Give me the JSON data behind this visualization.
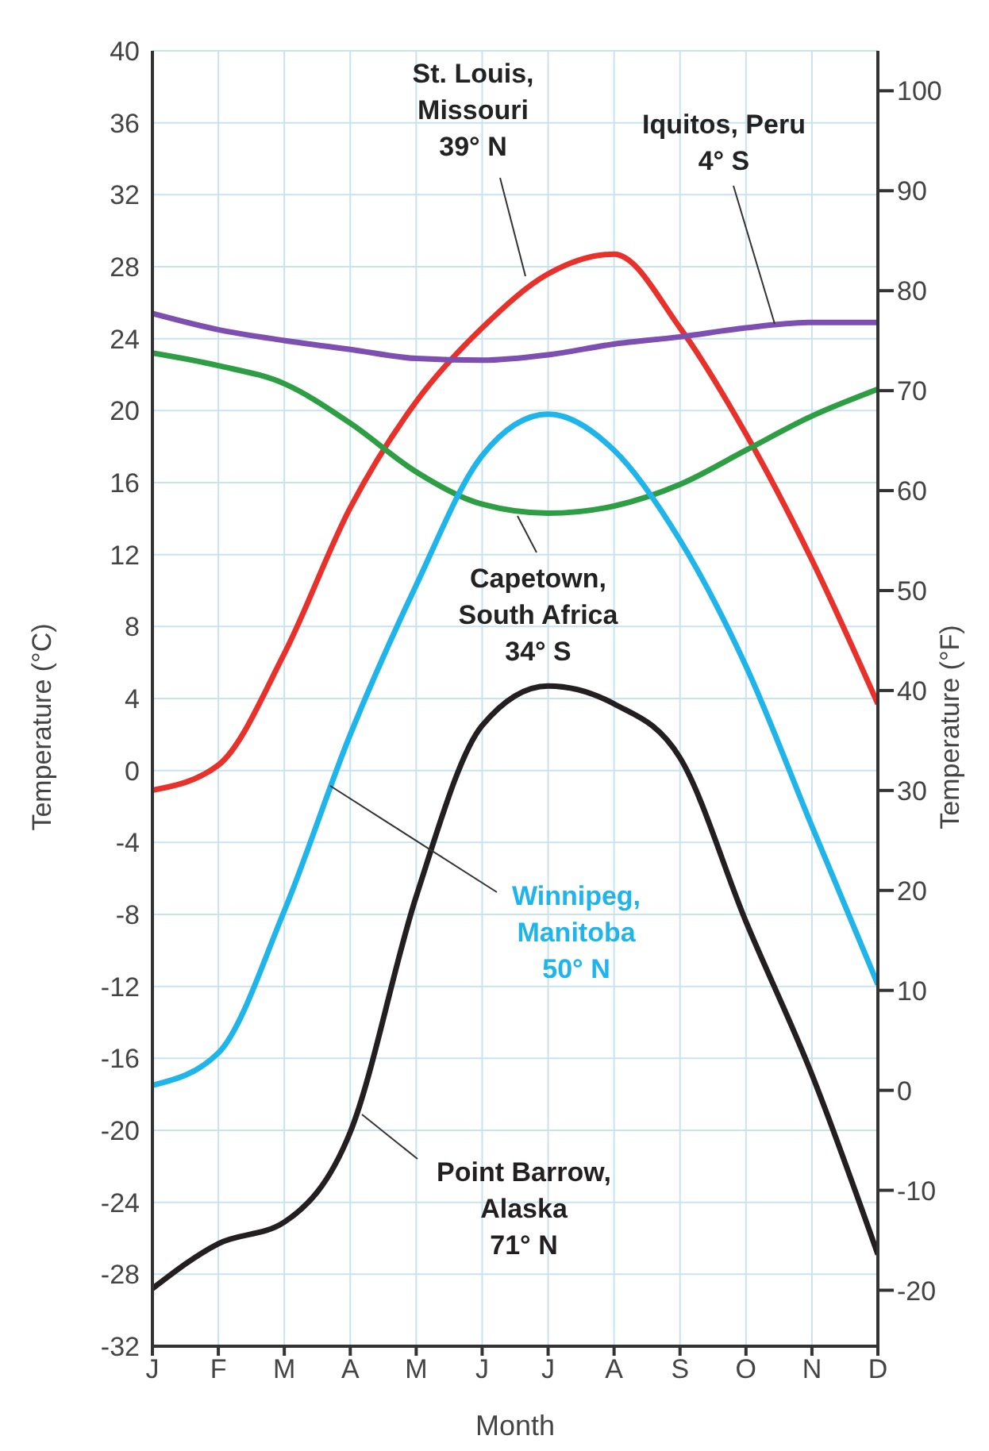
{
  "chart_data": {
    "type": "line",
    "xlabel": "Month",
    "ylabel": "Temperature (°C)",
    "y2label": "Temperature (°F)",
    "categories": [
      "J",
      "F",
      "M",
      "A",
      "M",
      "J",
      "J",
      "A",
      "S",
      "O",
      "N",
      "D"
    ],
    "series": [
      {
        "name": "St. Louis,\nMissouri\n39° N",
        "color": "#e8312a",
        "values": [
          -1.1,
          0.3,
          6.5,
          14.6,
          20.5,
          24.6,
          27.6,
          28.7,
          24.6,
          18.7,
          11.7,
          3.7
        ]
      },
      {
        "name": "Iquitos, Peru\n4° S",
        "color": "#7d4fb0",
        "values": [
          25.4,
          24.5,
          23.9,
          23.4,
          22.9,
          22.8,
          23.1,
          23.7,
          24.1,
          24.6,
          24.9,
          24.9
        ]
      },
      {
        "name": "Capetown,\nSouth Africa\n34° S",
        "color": "#2e9e44",
        "values": [
          23.2,
          22.5,
          21.5,
          19.3,
          16.6,
          14.8,
          14.3,
          14.7,
          15.9,
          17.8,
          19.7,
          21.2
        ]
      },
      {
        "name": "Winnipeg,\nManitoba\n50° N",
        "color": "#1fb4ea",
        "values": [
          -17.5,
          -15.7,
          -7.8,
          2.0,
          10.3,
          17.5,
          19.8,
          17.8,
          12.8,
          5.8,
          -3.1,
          -11.9
        ]
      },
      {
        "name": "Point Barrow,\nAlaska\n71° N",
        "color": "#231f20",
        "values": [
          -28.8,
          -26.3,
          -25.1,
          -20.1,
          -7.0,
          2.5,
          4.7,
          3.7,
          0.7,
          -8.4,
          -16.9,
          -26.9
        ]
      }
    ],
    "ylim": [
      -32,
      40
    ],
    "yticks": [
      -32,
      -28,
      -24,
      -20,
      -16,
      -12,
      -8,
      -4,
      0,
      4,
      8,
      12,
      16,
      20,
      24,
      28,
      32,
      36,
      40
    ],
    "y2lim": [
      -25.6,
      104
    ],
    "y2ticks": [
      -20,
      -10,
      0,
      10,
      20,
      30,
      40,
      50,
      60,
      70,
      80,
      90,
      100
    ],
    "grid": true,
    "legend": false,
    "marker": "none",
    "line_style": "solid"
  }
}
